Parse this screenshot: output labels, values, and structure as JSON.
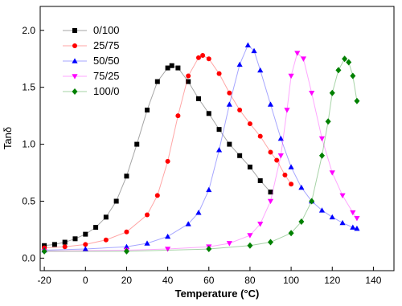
{
  "chart_data": {
    "type": "line",
    "xlabel": "Temperature (°C)",
    "ylabel": "Tanδ",
    "xlim": [
      -22,
      150
    ],
    "ylim": [
      -0.11,
      2.21
    ],
    "xticks": [
      -20,
      0,
      20,
      40,
      60,
      80,
      100,
      120,
      140
    ],
    "yticks": [
      {
        "value": 0,
        "label": "0.0"
      },
      0.5,
      {
        "value": 1,
        "label": "1.0"
      },
      1.5,
      {
        "value": 2,
        "label": "2.0"
      }
    ],
    "legend": "upper left",
    "series": [
      {
        "name": "0/100",
        "color": "#000000",
        "marker": "square",
        "x": [
          -20,
          -15,
          -10,
          -5,
          0,
          5,
          10,
          15,
          20,
          25,
          30,
          35,
          40,
          42,
          45,
          50,
          55,
          60,
          65,
          70,
          75,
          80,
          85,
          90
        ],
        "values": [
          0.11,
          0.12,
          0.14,
          0.17,
          0.21,
          0.27,
          0.36,
          0.5,
          0.72,
          1.0,
          1.3,
          1.55,
          1.67,
          1.69,
          1.67,
          1.55,
          1.4,
          1.27,
          1.13,
          1.0,
          0.9,
          0.8,
          0.68,
          0.58
        ]
      },
      {
        "name": "25/75",
        "color": "#ff0000",
        "marker": "circle",
        "x": [
          -20,
          -10,
          0,
          10,
          20,
          30,
          35,
          40,
          45,
          50,
          55,
          57,
          60,
          65,
          70,
          75,
          80,
          85,
          90,
          93,
          97,
          100
        ],
        "values": [
          0.09,
          0.1,
          0.12,
          0.16,
          0.23,
          0.38,
          0.55,
          0.85,
          1.25,
          1.6,
          1.76,
          1.78,
          1.75,
          1.62,
          1.45,
          1.3,
          1.18,
          1.07,
          0.93,
          0.86,
          0.73,
          0.65
        ]
      },
      {
        "name": "50/50",
        "color": "#0000ff",
        "marker": "triangle",
        "x": [
          -20,
          0,
          20,
          30,
          40,
          50,
          55,
          60,
          65,
          70,
          75,
          79,
          82,
          85,
          90,
          95,
          100,
          105,
          110,
          115,
          120,
          125,
          130,
          132
        ],
        "values": [
          0.07,
          0.08,
          0.1,
          0.13,
          0.19,
          0.3,
          0.4,
          0.6,
          0.95,
          1.35,
          1.7,
          1.87,
          1.82,
          1.65,
          1.35,
          1.05,
          0.8,
          0.62,
          0.5,
          0.42,
          0.36,
          0.31,
          0.27,
          0.26
        ]
      },
      {
        "name": "75/25",
        "color": "#ff00ff",
        "marker": "triangle-down",
        "x": [
          -20,
          20,
          40,
          60,
          70,
          80,
          85,
          90,
          95,
          98,
          100,
          103,
          106,
          110,
          115,
          120,
          125,
          130,
          132
        ],
        "values": [
          0.06,
          0.07,
          0.08,
          0.1,
          0.13,
          0.2,
          0.3,
          0.5,
          0.9,
          1.3,
          1.6,
          1.8,
          1.75,
          1.45,
          1.05,
          0.75,
          0.55,
          0.4,
          0.35
        ]
      },
      {
        "name": "100/0",
        "color": "#008000",
        "marker": "diamond",
        "x": [
          -20,
          20,
          60,
          80,
          90,
          100,
          105,
          110,
          115,
          118,
          120,
          123,
          126,
          128,
          130,
          132
        ],
        "values": [
          0.06,
          0.06,
          0.08,
          0.11,
          0.14,
          0.22,
          0.32,
          0.5,
          0.9,
          1.2,
          1.45,
          1.65,
          1.75,
          1.72,
          1.6,
          1.38
        ]
      }
    ]
  }
}
